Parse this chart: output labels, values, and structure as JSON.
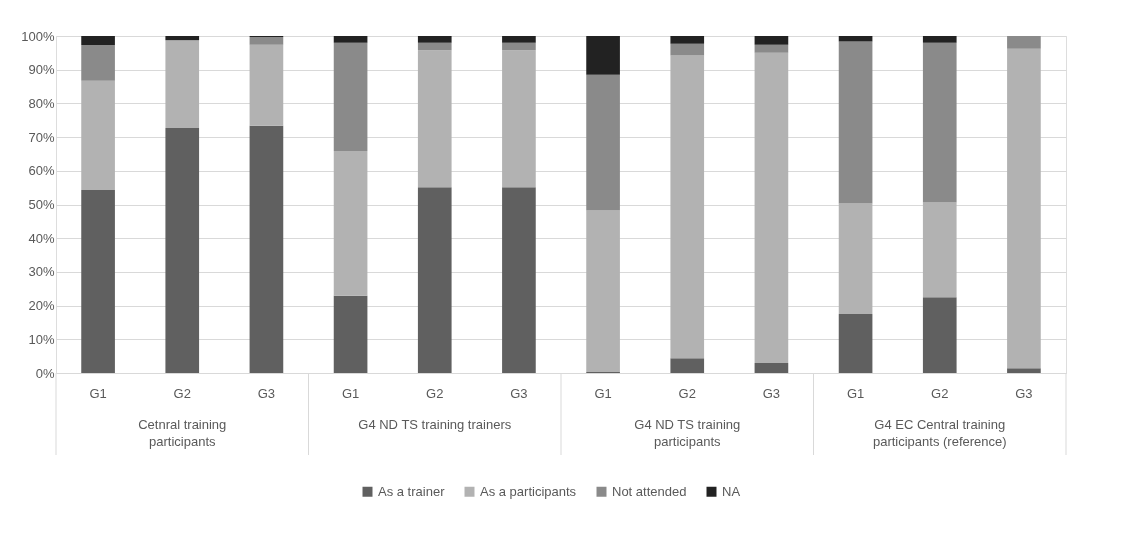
{
  "chart_data": {
    "type": "bar",
    "stacked": true,
    "categories": [
      "G1",
      "G2",
      "G3",
      "G1",
      "G2",
      "G3",
      "G1",
      "G2",
      "G3",
      "G1",
      "G2",
      "G3"
    ],
    "annotations": [
      "Cetnral training participants",
      "G4 ND TS training trainers",
      "G4 ND TS training participants",
      "G4 EC Central training participants (reference)"
    ],
    "series": [
      {
        "name": "As a trainer",
        "color": "#606060",
        "values": [
          54.3,
          72.7,
          73.4,
          22.9,
          55.1,
          55.1,
          0.3,
          4.4,
          3.0,
          17.5,
          22.5,
          1.4
        ]
      },
      {
        "name": "As a participants",
        "color": "#b2b2b2",
        "values": [
          32.4,
          25.9,
          24.0,
          43.0,
          40.7,
          40.7,
          47.9,
          89.8,
          92.0,
          32.8,
          28.1,
          94.8
        ]
      },
      {
        "name": "Not attended",
        "color": "#8a8a8a",
        "values": [
          10.6,
          0.2,
          2.3,
          32.1,
          2.2,
          2.2,
          40.3,
          3.5,
          2.4,
          48.1,
          47.4,
          3.8
        ]
      },
      {
        "name": "NA",
        "color": "#222222",
        "values": [
          2.7,
          1.2,
          0.3,
          2.0,
          2.0,
          2.0,
          11.5,
          2.3,
          2.6,
          1.6,
          2.0,
          0.0
        ]
      }
    ],
    "ylim": [
      0,
      100
    ],
    "yticks": [
      {
        "value": 0,
        "label": "0%"
      },
      {
        "value": 10,
        "label": "10%"
      },
      {
        "value": 20,
        "label": "20%"
      },
      {
        "value": 30,
        "label": "30%"
      },
      {
        "value": 40,
        "label": "40%"
      },
      {
        "value": 50,
        "label": "50%"
      },
      {
        "value": 60,
        "label": "60%"
      },
      {
        "value": 70,
        "label": "70%"
      },
      {
        "value": 80,
        "label": "80%"
      },
      {
        "value": 90,
        "label": "90%"
      },
      {
        "value": 100,
        "label": "100%"
      }
    ],
    "grid": "y",
    "legend": "bottom"
  }
}
